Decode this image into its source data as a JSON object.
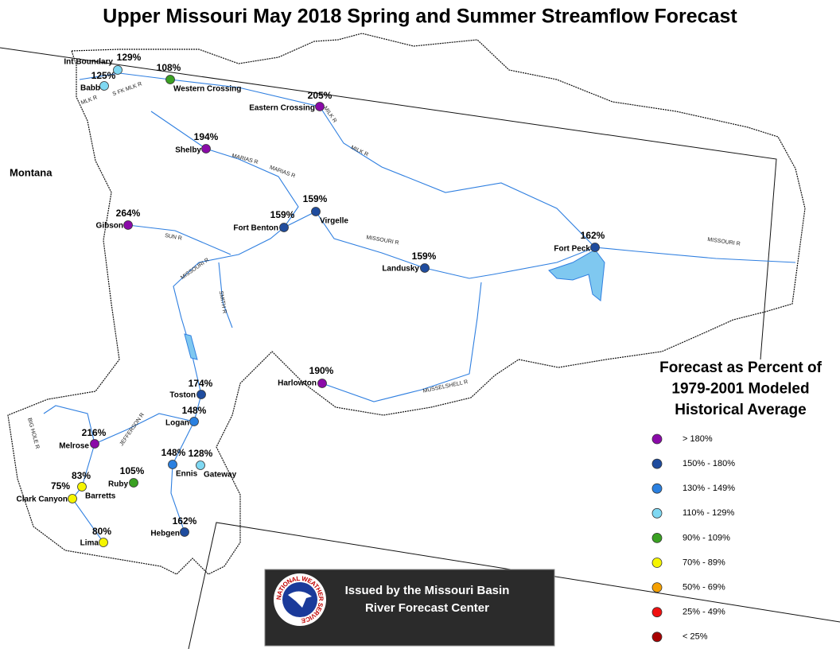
{
  "title": "Upper Missouri May 2018 Spring and Summer Streamflow Forecast",
  "region_label": "Montana",
  "stations": [
    {
      "name": "Int Boundary",
      "percent": "129%",
      "color": "#7fd8f2"
    },
    {
      "name": "Babb",
      "percent": "125%",
      "color": "#7fd8f2"
    },
    {
      "name": "Western Crossing",
      "percent": "108%",
      "color": "#3aa122"
    },
    {
      "name": "Eastern Crossing",
      "percent": "205%",
      "color": "#8a0aa8"
    },
    {
      "name": "Shelby",
      "percent": "194%",
      "color": "#8a0aa8"
    },
    {
      "name": "Virgelle",
      "percent": "159%",
      "color": "#1f4c9e"
    },
    {
      "name": "Fort Benton",
      "percent": "159%",
      "color": "#1f4c9e"
    },
    {
      "name": "Gibson",
      "percent": "264%",
      "color": "#8a0aa8"
    },
    {
      "name": "Landusky",
      "percent": "159%",
      "color": "#1f4c9e"
    },
    {
      "name": "Fort Peck",
      "percent": "162%",
      "color": "#1f4c9e"
    },
    {
      "name": "Harlowton",
      "percent": "190%",
      "color": "#8a0aa8"
    },
    {
      "name": "Toston",
      "percent": "174%",
      "color": "#1f4c9e"
    },
    {
      "name": "Logan",
      "percent": "148%",
      "color": "#2a80e0"
    },
    {
      "name": "Melrose",
      "percent": "216%",
      "color": "#8a0aa8"
    },
    {
      "name": "Ennis",
      "percent": "148%",
      "color": "#2a80e0"
    },
    {
      "name": "Gateway",
      "percent": "128%",
      "color": "#7fd8f2"
    },
    {
      "name": "Ruby",
      "percent": "105%",
      "color": "#3aa122"
    },
    {
      "name": "Barretts",
      "percent": "83%",
      "color": "#f5f500"
    },
    {
      "name": "Clark Canyon",
      "percent": "75%",
      "color": "#f5f500"
    },
    {
      "name": "Lima",
      "percent": "80%",
      "color": "#f5f500"
    },
    {
      "name": "Hebgen",
      "percent": "162%",
      "color": "#1f4c9e"
    }
  ],
  "rivers": [
    "MLK R",
    "S FK MLK R",
    "MILK R",
    "MILK R",
    "MARIAS R",
    "MARIAS R",
    "SUN R",
    "MISSOURI R",
    "SMITH R",
    "MISSOURI R",
    "MISSOURI R",
    "MUSSELSHELL R",
    "JEFFERSON R",
    "BIG HOLE R"
  ],
  "legend": {
    "title": [
      "Forecast as Percent of",
      "1979-2001 Modeled",
      "Historical Average"
    ],
    "items": [
      {
        "label": "> 180%",
        "color": "#8a0aa8"
      },
      {
        "label": "150% - 180%",
        "color": "#1f4c9e"
      },
      {
        "label": "130% - 149%",
        "color": "#2a80e0"
      },
      {
        "label": "110% - 129%",
        "color": "#7fd8f2"
      },
      {
        "label": "90% - 109%",
        "color": "#3aa122"
      },
      {
        "label": "70% - 89%",
        "color": "#f5f500"
      },
      {
        "label": "50% - 69%",
        "color": "#f5a000"
      },
      {
        "label": "25% - 49%",
        "color": "#f01010"
      },
      {
        "label": "< 25%",
        "color": "#a80000"
      }
    ]
  },
  "credit": {
    "logo": "NATIONAL WEATHER SERVICE",
    "lines": [
      "Issued by the Missouri Basin",
      "River Forecast Center"
    ]
  }
}
